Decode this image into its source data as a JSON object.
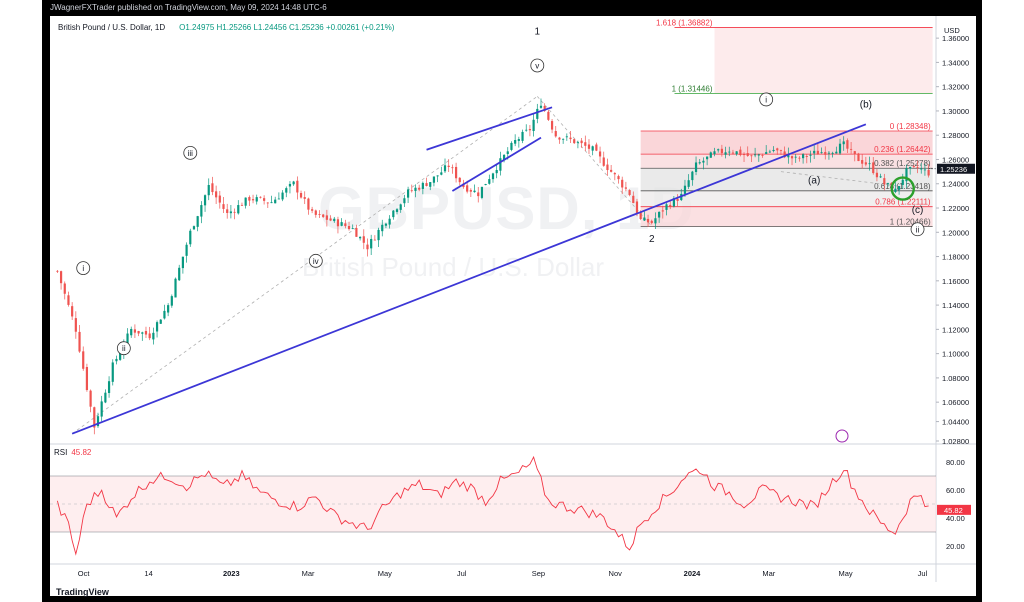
{
  "header": {
    "publisher_text": "JWagnerFXTrader published on TradingView.com, May 09, 2024 14:48 UTC-6"
  },
  "legend": {
    "symbol": "British Pound / U.S. Dollar, 1D",
    "ohlc": "O1.24975  H1.25266  L1.24456  C1.25236  +0.00261 (+0.21%)"
  },
  "watermark": {
    "ticker": "GBPUSD, 1D",
    "name": "British Pound / U.S. Dollar"
  },
  "footer": {
    "logo": "TradingView"
  },
  "colors": {
    "bull": "#089981",
    "bear": "#ef5350",
    "trendline": "#3c36d6",
    "rsi": "#f23645",
    "fib_red": "#f23645",
    "fib_green": "#4caf50",
    "circle": "#2ca02c"
  },
  "chart_data": {
    "type": "candlestick",
    "price_axis": {
      "unit": "USD",
      "ylim": [
        1.028,
        1.37
      ],
      "ticks": [
        "1.36000",
        "1.34000",
        "1.32000",
        "1.30000",
        "1.28000",
        "1.26000",
        "1.24000",
        "1.22000",
        "1.20000",
        "1.18000",
        "1.16000",
        "1.14000",
        "1.12000",
        "1.10000",
        "1.08000",
        "1.06000",
        "1.04400",
        "1.02800"
      ],
      "last_price": "1.25236"
    },
    "time_axis": {
      "labels": [
        "Oct",
        "14",
        "2023",
        "Mar",
        "May",
        "Jul",
        "Sep",
        "Nov",
        "2024",
        "Mar",
        "May",
        "Jul"
      ]
    },
    "price_path": [
      [
        0,
        1.168
      ],
      [
        5,
        1.12
      ],
      [
        10,
        1.04
      ],
      [
        15,
        1.09
      ],
      [
        20,
        1.12
      ],
      [
        25,
        1.115
      ],
      [
        30,
        1.14
      ],
      [
        36,
        1.2
      ],
      [
        41,
        1.238
      ],
      [
        46,
        1.215
      ],
      [
        52,
        1.228
      ],
      [
        58,
        1.225
      ],
      [
        64,
        1.24
      ],
      [
        69,
        1.215
      ],
      [
        74,
        1.21
      ],
      [
        80,
        1.203
      ],
      [
        84,
        1.188
      ],
      [
        89,
        1.21
      ],
      [
        95,
        1.233
      ],
      [
        101,
        1.242
      ],
      [
        106,
        1.255
      ],
      [
        110,
        1.238
      ],
      [
        114,
        1.232
      ],
      [
        118,
        1.25
      ],
      [
        124,
        1.275
      ],
      [
        128,
        1.285
      ],
      [
        131,
        1.307
      ],
      [
        135,
        1.28
      ],
      [
        140,
        1.275
      ],
      [
        145,
        1.268
      ],
      [
        150,
        1.25
      ],
      [
        155,
        1.232
      ],
      [
        158,
        1.21
      ],
      [
        161,
        1.208
      ],
      [
        165,
        1.222
      ],
      [
        169,
        1.23
      ],
      [
        173,
        1.255
      ],
      [
        178,
        1.265
      ],
      [
        182,
        1.268
      ],
      [
        188,
        1.262
      ],
      [
        194,
        1.268
      ],
      [
        200,
        1.26
      ],
      [
        205,
        1.265
      ],
      [
        210,
        1.268
      ],
      [
        213,
        1.272
      ],
      [
        216,
        1.262
      ],
      [
        220,
        1.255
      ],
      [
        224,
        1.24
      ],
      [
        227,
        1.234
      ],
      [
        230,
        1.25
      ],
      [
        233,
        1.253
      ],
      [
        236,
        1.249
      ]
    ],
    "rsi": {
      "label": "RSI",
      "value": "45.82",
      "ticks": [
        "80.00",
        "60.00",
        "40.00",
        "20.00"
      ],
      "bands": [
        30,
        70
      ],
      "mid": 50,
      "ylim": [
        10,
        90
      ],
      "path": [
        [
          0,
          49
        ],
        [
          3,
          35
        ],
        [
          5,
          14
        ],
        [
          8,
          50
        ],
        [
          12,
          60
        ],
        [
          16,
          40
        ],
        [
          20,
          55
        ],
        [
          25,
          67
        ],
        [
          30,
          70
        ],
        [
          35,
          63
        ],
        [
          40,
          72
        ],
        [
          45,
          62
        ],
        [
          50,
          70
        ],
        [
          55,
          58
        ],
        [
          60,
          52
        ],
        [
          65,
          48
        ],
        [
          70,
          55
        ],
        [
          75,
          42
        ],
        [
          80,
          36
        ],
        [
          84,
          32
        ],
        [
          88,
          46
        ],
        [
          93,
          58
        ],
        [
          98,
          64
        ],
        [
          103,
          56
        ],
        [
          108,
          66
        ],
        [
          112,
          62
        ],
        [
          116,
          52
        ],
        [
          120,
          66
        ],
        [
          125,
          72
        ],
        [
          129,
          80
        ],
        [
          133,
          52
        ],
        [
          138,
          48
        ],
        [
          143,
          45
        ],
        [
          148,
          40
        ],
        [
          152,
          28
        ],
        [
          155,
          19
        ],
        [
          158,
          36
        ],
        [
          162,
          48
        ],
        [
          166,
          58
        ],
        [
          170,
          70
        ],
        [
          174,
          75
        ],
        [
          178,
          63
        ],
        [
          182,
          58
        ],
        [
          186,
          50
        ],
        [
          191,
          60
        ],
        [
          196,
          55
        ],
        [
          200,
          52
        ],
        [
          205,
          48
        ],
        [
          210,
          66
        ],
        [
          213,
          76
        ],
        [
          216,
          60
        ],
        [
          220,
          45
        ],
        [
          224,
          34
        ],
        [
          227,
          30
        ],
        [
          231,
          52
        ],
        [
          234,
          58
        ],
        [
          236,
          46
        ]
      ]
    },
    "trendlines": [
      {
        "name": "base trendline",
        "from": [
          4,
          1.034
        ],
        "to": [
          219,
          1.289
        ]
      },
      {
        "name": "wedge upper",
        "from": [
          100,
          1.268
        ],
        "to": [
          134,
          1.303
        ]
      },
      {
        "name": "wedge lower",
        "from": [
          107,
          1.234
        ],
        "to": [
          131,
          1.278
        ]
      }
    ],
    "dashed_lines": [
      {
        "from": [
          4,
          1.034
        ],
        "to": [
          130,
          1.312
        ]
      },
      {
        "from": [
          130,
          1.312
        ],
        "to": [
          161,
          1.205
        ]
      },
      {
        "from": [
          196,
          1.25
        ],
        "to": [
          228,
          1.238
        ]
      }
    ],
    "fib_levels": [
      {
        "label": "0 (1.28348)",
        "value": 1.28348,
        "zone": "red"
      },
      {
        "label": "0.236 (1.26442)",
        "value": 1.26442,
        "zone": "red"
      },
      {
        "label": "0.382 (1.25278)",
        "value": 1.25278,
        "zone": "gray"
      },
      {
        "label": "0.618 (1.23418)",
        "value": 1.23418,
        "zone": "gray"
      },
      {
        "label": "0.786 (1.22111)",
        "value": 1.22111,
        "zone": "red"
      },
      {
        "label": "1 (1.20466)",
        "value": 1.20466,
        "zone": "gray"
      }
    ],
    "fib_extension": [
      {
        "label": "1 (1.31446)",
        "value": 1.31446,
        "color": "green"
      },
      {
        "label": "1.618 (1.36882)",
        "value": 1.36882,
        "color": "red"
      }
    ],
    "wave_labels": [
      {
        "text": "i",
        "at": [
          7,
          1.168
        ],
        "circled": true
      },
      {
        "text": "ii",
        "at": [
          18,
          1.102
        ],
        "circled": true
      },
      {
        "text": "iii",
        "at": [
          36,
          1.263
        ],
        "circled": true
      },
      {
        "text": "iv",
        "at": [
          70,
          1.174
        ],
        "circled": true
      },
      {
        "text": "v",
        "at": [
          130,
          1.335
        ],
        "circled": true
      },
      {
        "text": "1",
        "at": [
          130,
          1.363
        ],
        "circled": false
      },
      {
        "text": "2",
        "at": [
          161,
          1.192
        ],
        "circled": false
      },
      {
        "text": "i",
        "at": [
          192,
          1.307
        ],
        "circled": true
      },
      {
        "text": "(a)",
        "at": [
          205,
          1.24
        ],
        "circled": false
      },
      {
        "text": "(b)",
        "at": [
          219,
          1.303
        ],
        "circled": false
      },
      {
        "text": "(c)",
        "at": [
          233,
          1.216
        ],
        "circled": false
      },
      {
        "text": "ii",
        "at": [
          233,
          1.2
        ],
        "circled": true
      }
    ]
  }
}
